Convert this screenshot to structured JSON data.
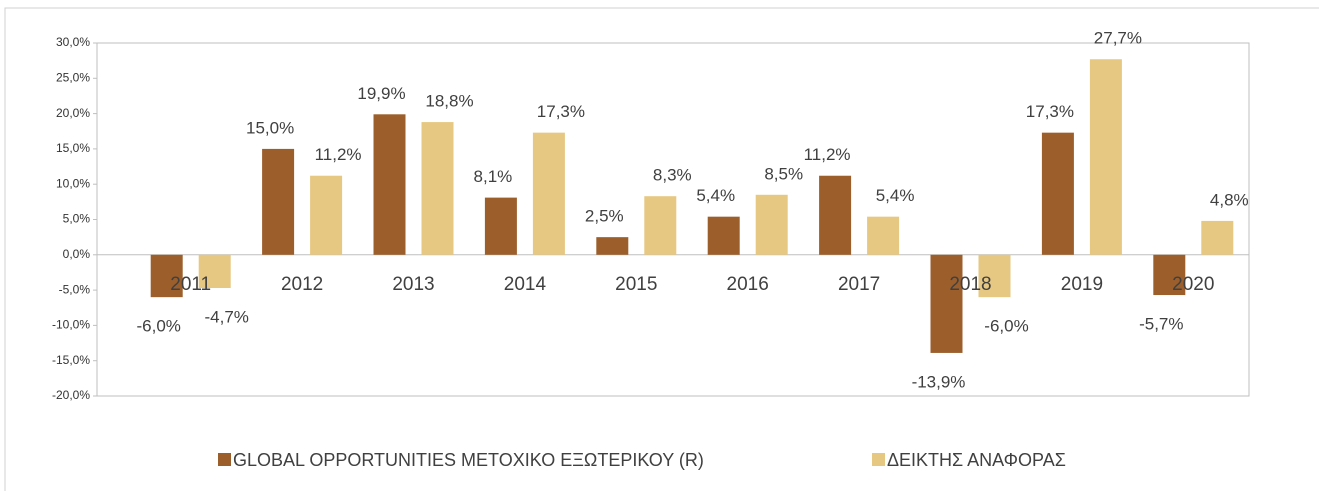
{
  "chart_data": {
    "type": "bar",
    "categories": [
      "2011",
      "2012",
      "2013",
      "2014",
      "2015",
      "2016",
      "2017",
      "2018",
      "2019",
      "2020"
    ],
    "series": [
      {
        "name": "GLOBAL OPPORTUNITIES ΜΕΤΟΧΙΚΟ ΕΞΩΤΕΡΙΚΟΥ (R)",
        "color": "#9c5f2c",
        "values": [
          -6.0,
          15.0,
          19.9,
          8.1,
          2.5,
          5.4,
          11.2,
          -13.9,
          17.3,
          -5.7
        ],
        "value_labels": [
          "-6,0%",
          "15,0%",
          "19,9%",
          "8,1%",
          "2,5%",
          "5,4%",
          "11,2%",
          "-13,9%",
          "17,3%",
          "-5,7%"
        ]
      },
      {
        "name": "ΔΕΙΚΤΗΣ ΑΝΑΦΟΡΑΣ",
        "color": "#e6c882",
        "values": [
          -4.7,
          11.2,
          18.8,
          17.3,
          8.3,
          8.5,
          5.4,
          -6.0,
          27.7,
          4.8
        ],
        "value_labels": [
          "-4,7%",
          "11,2%",
          "18,8%",
          "17,3%",
          "8,3%",
          "8,5%",
          "5,4%",
          "-6,0%",
          "27,7%",
          "4,8%"
        ]
      }
    ],
    "ylim": [
      -20,
      30
    ],
    "yticks": [
      {
        "value": -20,
        "label": "-20,0%"
      },
      {
        "value": -15,
        "label": "-15,0%"
      },
      {
        "value": -10,
        "label": "-10,0%"
      },
      {
        "value": -5,
        "label": "-5,0%"
      },
      {
        "value": 0,
        "label": "0,0%"
      },
      {
        "value": 5,
        "label": "5,0%"
      },
      {
        "value": 10,
        "label": "10,0%"
      },
      {
        "value": 15,
        "label": "15,0%"
      },
      {
        "value": 20,
        "label": "20,0%"
      },
      {
        "value": 25,
        "label": "25,0%"
      },
      {
        "value": 30,
        "label": "30,0%"
      }
    ],
    "grid": false
  }
}
